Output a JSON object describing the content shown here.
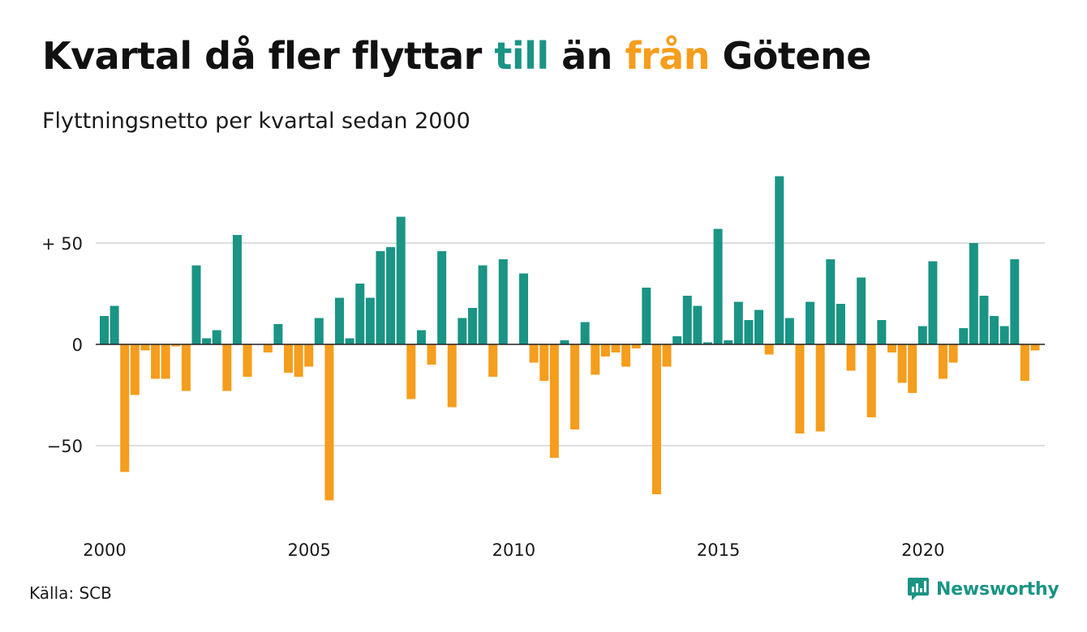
{
  "title": {
    "part1": "Kvartal då fler flyttar ",
    "till": "till",
    "part2": " än ",
    "fran": "från",
    "part3": " Götene"
  },
  "subtitle": "Flyttningsnetto per kvartal sedan 2000",
  "source": "Källa: SCB",
  "brand": {
    "name": "Newsworthy",
    "icon": "newsworthy-logo-icon"
  },
  "colors": {
    "positive": "#1a9485",
    "negative": "#f59d1d",
    "grid": "#dddddd",
    "zero_line": "#222222"
  },
  "chart_data": {
    "type": "bar",
    "start_year": 2000,
    "x_ticks": [
      "2000",
      "2005",
      "2010",
      "2015",
      "2020"
    ],
    "y_ticks": [
      {
        "value": 50,
        "label": "+ 50"
      },
      {
        "value": 0,
        "label": "0"
      },
      {
        "value": -50,
        "label": "−50"
      }
    ],
    "ylim": [
      -85,
      85
    ],
    "grid": true,
    "values": [
      14,
      19,
      -63,
      -25,
      -3,
      -17,
      -17,
      -1,
      -23,
      39,
      3,
      7,
      -23,
      54,
      -16,
      0,
      -4,
      10,
      -14,
      -16,
      -11,
      13,
      -77,
      23,
      3,
      30,
      23,
      46,
      48,
      63,
      -27,
      7,
      -10,
      46,
      -31,
      13,
      18,
      39,
      -16,
      42,
      0,
      35,
      -9,
      -18,
      -56,
      2,
      -42,
      11,
      -15,
      -6,
      -4,
      -11,
      -2,
      28,
      -74,
      -11,
      4,
      24,
      19,
      1,
      57,
      2,
      21,
      12,
      17,
      -5,
      83,
      13,
      -44,
      21,
      -43,
      42,
      20,
      -13,
      33,
      -36,
      12,
      -4,
      -19,
      -24,
      9,
      41,
      -17,
      -9,
      8,
      50,
      24,
      14,
      9,
      42,
      -18,
      -3
    ]
  }
}
